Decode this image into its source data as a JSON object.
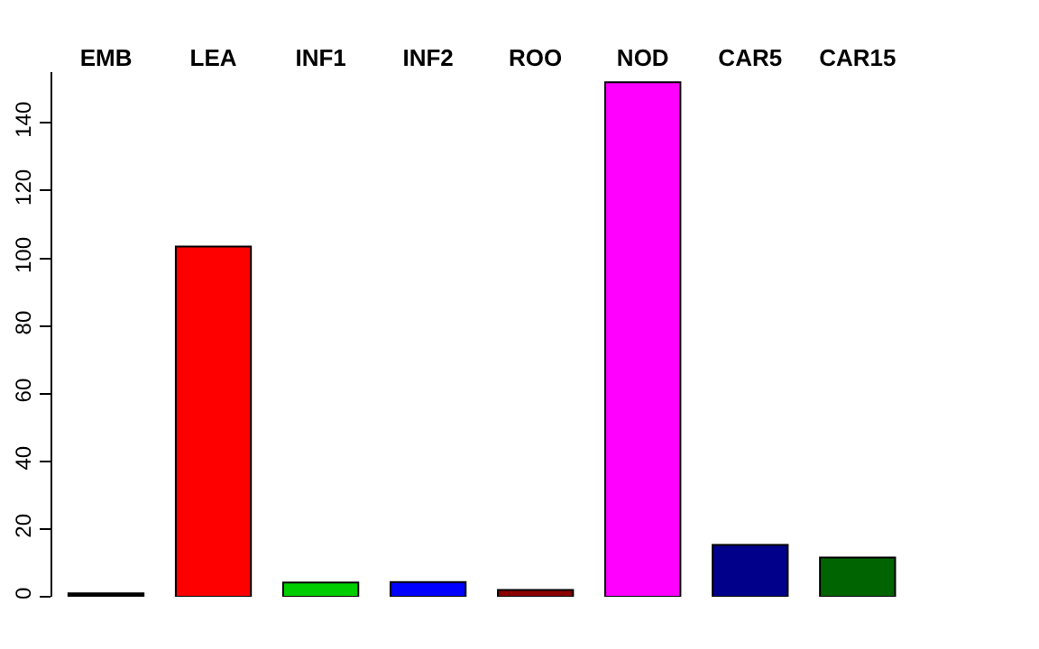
{
  "chart_data": {
    "type": "bar",
    "categories": [
      "EMB",
      "LEA",
      "INF1",
      "INF2",
      "ROO",
      "NOD",
      "CAR5",
      "CAR15"
    ],
    "values": [
      1,
      103.5,
      4.2,
      4.3,
      2,
      152,
      15.3,
      11.6
    ],
    "colors": [
      "#000000",
      "#ff0000",
      "#00cd00",
      "#0000ff",
      "#8b0000",
      "#ff00ff",
      "#00008b",
      "#006400"
    ],
    "ylim": [
      0,
      155
    ],
    "yticks": [
      0,
      20,
      40,
      60,
      80,
      100,
      120,
      140
    ]
  }
}
